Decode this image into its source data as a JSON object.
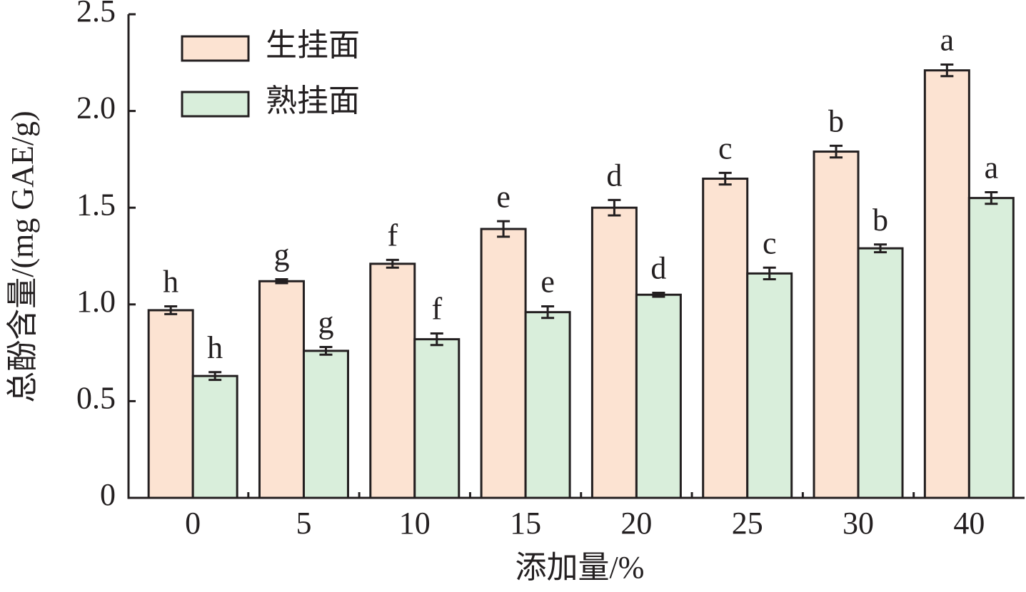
{
  "chart_data": {
    "type": "bar",
    "x_label": "添加量/%",
    "y_label": "总酚含量/(mg GAE/g)",
    "categories": [
      "0",
      "5",
      "10",
      "15",
      "20",
      "25",
      "30",
      "40"
    ],
    "series": [
      {
        "name": "生挂面",
        "color": "#fce3d2",
        "values": [
          0.97,
          1.12,
          1.21,
          1.39,
          1.5,
          1.65,
          1.79,
          2.21
        ],
        "errors": [
          0.02,
          0.01,
          0.02,
          0.04,
          0.04,
          0.03,
          0.03,
          0.03
        ],
        "letters": [
          "h",
          "g",
          "f",
          "e",
          "d",
          "c",
          "b",
          "a"
        ]
      },
      {
        "name": "熟挂面",
        "color": "#d9eedb",
        "values": [
          0.63,
          0.76,
          0.82,
          0.96,
          1.05,
          1.16,
          1.29,
          1.55
        ],
        "errors": [
          0.02,
          0.02,
          0.03,
          0.03,
          0.01,
          0.03,
          0.02,
          0.03
        ],
        "letters": [
          "h",
          "g",
          "f",
          "e",
          "d",
          "c",
          "b",
          "a"
        ]
      }
    ],
    "ylim": [
      0,
      2.5
    ],
    "yticks": [
      0,
      0.5,
      {
        "value": 1,
        "label": "1.0"
      },
      1.5,
      {
        "value": 2,
        "label": "2.0"
      },
      2.5
    ],
    "legend": "top-left"
  }
}
